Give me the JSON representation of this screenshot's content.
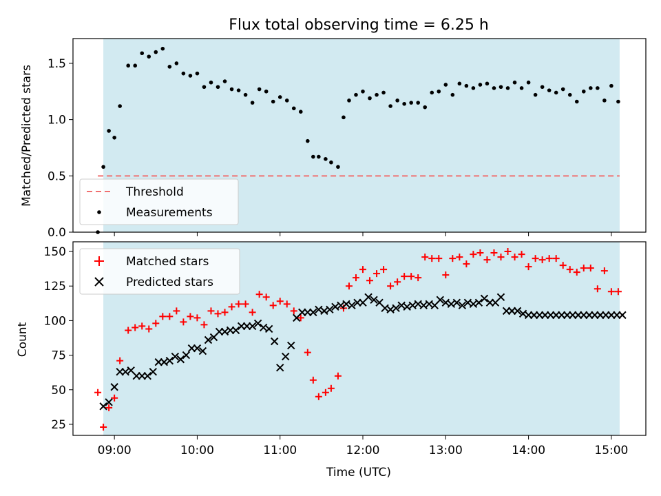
{
  "title": "Flux total observing time = 6.25 h",
  "chart_data": [
    {
      "type": "scatter",
      "panel": "top",
      "ylabel": "Matched/Predicted stars",
      "xlabel": "",
      "xlim": [
        "08:30",
        "15:25"
      ],
      "ylim": [
        0,
        1.72
      ],
      "y_ticks": [
        0.0,
        0.5,
        1.0,
        1.5
      ],
      "y_tick_labels": [
        "0.0",
        "0.5",
        "1.0",
        "1.5"
      ],
      "shaded_interval": [
        "08:52",
        "15:06"
      ],
      "legend": {
        "placement": "lower-left",
        "entries": [
          "Threshold",
          "Measurements"
        ]
      },
      "series": [
        {
          "name": "Threshold",
          "style": "dashed-line",
          "color": "#f07070",
          "x": [
            "08:48",
            "15:06"
          ],
          "y": [
            0.5,
            0.5
          ]
        },
        {
          "name": "Measurements",
          "style": "dot",
          "color": "#000000",
          "x": [
            "08:48",
            "08:52",
            "08:56",
            "09:00",
            "09:04",
            "09:10",
            "09:15",
            "09:20",
            "09:25",
            "09:30",
            "09:35",
            "09:40",
            "09:45",
            "09:50",
            "09:55",
            "10:00",
            "10:05",
            "10:10",
            "10:15",
            "10:20",
            "10:25",
            "10:30",
            "10:35",
            "10:40",
            "10:45",
            "10:50",
            "10:55",
            "11:00",
            "11:05",
            "11:10",
            "11:15",
            "11:20",
            "11:24",
            "11:28",
            "11:33",
            "11:37",
            "11:42",
            "11:46",
            "11:50",
            "11:55",
            "12:00",
            "12:05",
            "12:10",
            "12:15",
            "12:20",
            "12:25",
            "12:30",
            "12:35",
            "12:40",
            "12:45",
            "12:50",
            "12:55",
            "13:00",
            "13:05",
            "13:10",
            "13:15",
            "13:20",
            "13:25",
            "13:30",
            "13:35",
            "13:40",
            "13:45",
            "13:50",
            "13:55",
            "14:00",
            "14:05",
            "14:10",
            "14:15",
            "14:20",
            "14:25",
            "14:30",
            "14:35",
            "14:40",
            "14:45",
            "14:50",
            "14:55",
            "15:00",
            "15:05"
          ],
          "y": [
            0.0,
            0.58,
            0.9,
            0.84,
            1.12,
            1.48,
            1.48,
            1.59,
            1.56,
            1.6,
            1.63,
            1.47,
            1.5,
            1.41,
            1.39,
            1.41,
            1.29,
            1.33,
            1.29,
            1.34,
            1.27,
            1.26,
            1.22,
            1.15,
            1.27,
            1.25,
            1.16,
            1.2,
            1.17,
            1.1,
            1.07,
            0.81,
            0.67,
            0.67,
            0.65,
            0.62,
            0.58,
            1.02,
            1.17,
            1.22,
            1.25,
            1.19,
            1.22,
            1.24,
            1.12,
            1.17,
            1.14,
            1.15,
            1.15,
            1.11,
            1.24,
            1.25,
            1.31,
            1.22,
            1.32,
            1.3,
            1.28,
            1.31,
            1.32,
            1.28,
            1.29,
            1.28,
            1.33,
            1.28,
            1.33,
            1.22,
            1.29,
            1.26,
            1.24,
            1.27,
            1.22,
            1.16,
            1.25,
            1.28,
            1.28,
            1.17,
            1.3,
            1.16
          ]
        }
      ]
    },
    {
      "type": "scatter",
      "panel": "bottom",
      "ylabel": "Count",
      "xlabel": "Time (UTC)",
      "xlim": [
        "08:30",
        "15:25"
      ],
      "ylim": [
        17,
        157
      ],
      "y_ticks": [
        25,
        50,
        75,
        100,
        125,
        150
      ],
      "y_tick_labels": [
        "25",
        "50",
        "75",
        "100",
        "125",
        "150"
      ],
      "x_ticks": [
        "09:00",
        "10:00",
        "11:00",
        "12:00",
        "13:00",
        "14:00",
        "15:00"
      ],
      "x_tick_labels": [
        "09:00",
        "10:00",
        "11:00",
        "12:00",
        "13:00",
        "14:00",
        "15:00"
      ],
      "shaded_interval": [
        "08:52",
        "15:06"
      ],
      "legend": {
        "placement": "upper-left",
        "entries": [
          "Matched stars",
          "Predicted stars"
        ]
      },
      "series": [
        {
          "name": "Matched stars",
          "style": "plus",
          "color": "#ff0000",
          "x": [
            "08:48",
            "08:52",
            "08:56",
            "09:00",
            "09:04",
            "09:10",
            "09:15",
            "09:20",
            "09:25",
            "09:30",
            "09:35",
            "09:40",
            "09:45",
            "09:50",
            "09:55",
            "10:00",
            "10:05",
            "10:10",
            "10:15",
            "10:20",
            "10:25",
            "10:30",
            "10:35",
            "10:40",
            "10:45",
            "10:50",
            "10:55",
            "11:00",
            "11:05",
            "11:10",
            "11:15",
            "11:20",
            "11:24",
            "11:28",
            "11:33",
            "11:37",
            "11:42",
            "11:46",
            "11:50",
            "11:55",
            "12:00",
            "12:05",
            "12:10",
            "12:15",
            "12:20",
            "12:25",
            "12:30",
            "12:35",
            "12:40",
            "12:45",
            "12:50",
            "12:55",
            "13:00",
            "13:05",
            "13:10",
            "13:15",
            "13:20",
            "13:25",
            "13:30",
            "13:35",
            "13:40",
            "13:45",
            "13:50",
            "13:55",
            "14:00",
            "14:05",
            "14:10",
            "14:15",
            "14:20",
            "14:25",
            "14:30",
            "14:35",
            "14:40",
            "14:45",
            "14:50",
            "14:55",
            "15:00",
            "15:05"
          ],
          "y": [
            48,
            23,
            37,
            44,
            71,
            93,
            95,
            96,
            94,
            98,
            103,
            103,
            107,
            99,
            103,
            102,
            97,
            107,
            105,
            106,
            110,
            112,
            112,
            106,
            119,
            117,
            111,
            114,
            112,
            107,
            102,
            77,
            57,
            45,
            48,
            51,
            60,
            109,
            125,
            131,
            137,
            129,
            134,
            137,
            125,
            128,
            132,
            132,
            131,
            146,
            145,
            145,
            133,
            145,
            146,
            141,
            148,
            149,
            144,
            149,
            146,
            150,
            146,
            148,
            139,
            145,
            144,
            145,
            145,
            140,
            137,
            135,
            138,
            138,
            123,
            136,
            121,
            121
          ]
        },
        {
          "name": "Predicted stars",
          "style": "x",
          "color": "#000000",
          "x": [
            "08:52",
            "08:56",
            "09:00",
            "09:04",
            "09:08",
            "09:12",
            "09:16",
            "09:20",
            "09:24",
            "09:28",
            "09:32",
            "09:36",
            "09:40",
            "09:44",
            "09:48",
            "09:52",
            "09:56",
            "10:00",
            "10:04",
            "10:08",
            "10:12",
            "10:16",
            "10:20",
            "10:24",
            "10:28",
            "10:32",
            "10:36",
            "10:40",
            "10:44",
            "10:48",
            "10:52",
            "10:56",
            "11:00",
            "11:04",
            "11:08",
            "11:12",
            "11:16",
            "11:20",
            "11:24",
            "11:28",
            "11:32",
            "11:36",
            "11:40",
            "11:44",
            "11:48",
            "11:52",
            "11:56",
            "12:00",
            "12:04",
            "12:08",
            "12:12",
            "12:16",
            "12:20",
            "12:24",
            "12:28",
            "12:32",
            "12:36",
            "12:40",
            "12:44",
            "12:48",
            "12:52",
            "12:56",
            "13:00",
            "13:04",
            "13:08",
            "13:12",
            "13:16",
            "13:20",
            "13:24",
            "13:28",
            "13:32",
            "13:36",
            "13:40",
            "13:44",
            "13:48",
            "13:52",
            "13:56",
            "14:00",
            "14:04",
            "14:08",
            "14:12",
            "14:16",
            "14:20",
            "14:24",
            "14:28",
            "14:32",
            "14:36",
            "14:40",
            "14:44",
            "14:48",
            "14:52",
            "14:56",
            "15:00",
            "15:04",
            "15:08"
          ],
          "y": [
            38,
            41,
            52,
            63,
            63,
            64,
            60,
            60,
            60,
            63,
            70,
            70,
            71,
            74,
            72,
            75,
            80,
            80,
            78,
            86,
            88,
            92,
            92,
            93,
            93,
            96,
            96,
            96,
            98,
            95,
            94,
            85,
            66,
            74,
            82,
            102,
            106,
            106,
            106,
            108,
            107,
            108,
            110,
            111,
            112,
            111,
            113,
            113,
            117,
            115,
            113,
            109,
            108,
            109,
            111,
            110,
            111,
            112,
            111,
            112,
            111,
            115,
            113,
            112,
            113,
            111,
            113,
            112,
            113,
            116,
            113,
            113,
            117,
            107,
            107,
            107,
            105,
            104,
            104,
            104,
            104,
            104,
            104,
            104,
            104,
            104,
            104,
            104,
            104,
            104,
            104,
            104,
            104,
            104,
            104
          ]
        }
      ]
    }
  ]
}
